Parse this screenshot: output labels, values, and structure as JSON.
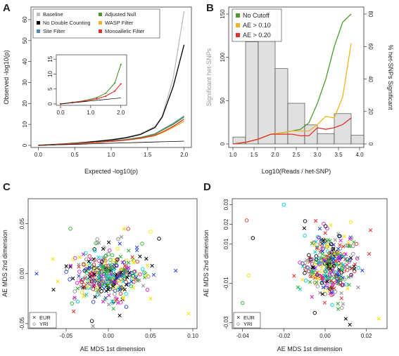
{
  "panels": {
    "A": {
      "letter": "A",
      "xlabel": "Expected -log10(p)",
      "ylabel": "Observed -log10(p)",
      "xticks": [
        "0.0",
        "0.5",
        "1.0",
        "1.5",
        "2.0"
      ],
      "yticks": [
        "0",
        "10",
        "20",
        "30",
        "40",
        "50",
        "60"
      ],
      "inset_xticks": [
        "0.0",
        "1.0",
        "2.0"
      ],
      "inset_yticks": [
        "0",
        "5",
        "10",
        "15"
      ],
      "legend": [
        {
          "label": "Baseline",
          "color": "#bdbdbd"
        },
        {
          "label": "Adjusted Null",
          "color": "#4d9a2a"
        },
        {
          "label": "No Double Counting",
          "color": "#000000"
        },
        {
          "label": "WASP Filter",
          "color": "#f2b420"
        },
        {
          "label": "Site Filter",
          "color": "#4f87c0"
        },
        {
          "label": "Monoallelic Filter",
          "color": "#e2302a"
        }
      ]
    },
    "B": {
      "letter": "B",
      "xlabel": "Log10(Reads / het-SNP)",
      "ylabel_left": "Significant het-SNPs",
      "ylabel_right": "% het-SNPs Significant",
      "xticks": [
        "1.0",
        "1.5",
        "2.0",
        "2.5",
        "3.0",
        "3.5",
        "4.0"
      ],
      "yticks_left": [
        "0",
        "50",
        "100",
        "150"
      ],
      "yticks_right": [
        "0",
        "20",
        "40",
        "60",
        "80"
      ],
      "legend": [
        {
          "label": "No Cutoff",
          "color": "#4d9a2a"
        },
        {
          "label": "AE > 0.10",
          "color": "#f2b420"
        },
        {
          "label": "AE > 0.20",
          "color": "#e2302a"
        }
      ]
    },
    "C": {
      "letter": "C",
      "xlabel": "AE MDS 1st dimension",
      "ylabel": "AE MDS 2nd dimension",
      "xticks": [
        "-0.05",
        "0.00",
        "0.05",
        "0.10"
      ],
      "yticks": [
        "-0.05",
        "0.00",
        "0.05"
      ],
      "legend": [
        {
          "label": "EUR",
          "symbol": "×"
        },
        {
          "label": "YRI",
          "symbol": "○"
        }
      ]
    },
    "D": {
      "letter": "D",
      "xlabel": "AE MDS 1st dimension",
      "ylabel": "AE MDS 2nd dimension",
      "xticks": [
        "-0.04",
        "-0.02",
        "0.00",
        "0.02"
      ],
      "yticks": [
        "-0.03",
        "-0.01",
        "0.01",
        "0.02",
        "0.03"
      ],
      "legend": [
        {
          "label": "EUR",
          "symbol": "×"
        },
        {
          "label": "YRI",
          "symbol": "○"
        }
      ]
    }
  },
  "chart_data": [
    {
      "panel": "A",
      "type": "line",
      "xlabel": "Expected -log10(p)",
      "ylabel": "Observed -log10(p)",
      "xlim": [
        -0.1,
        2.1
      ],
      "ylim": [
        -1,
        66
      ],
      "x": [
        0,
        0.2,
        0.4,
        0.6,
        0.8,
        1.0,
        1.2,
        1.4,
        1.6,
        1.7,
        1.85,
        2.0
      ],
      "series": [
        {
          "name": "Baseline",
          "color": "#bdbdbd",
          "values": [
            0,
            0.4,
            0.9,
            1.4,
            2.0,
            2.8,
            3.8,
            5.5,
            9,
            14,
            32,
            64
          ]
        },
        {
          "name": "No Double Counting",
          "color": "#000000",
          "values": [
            0,
            0.4,
            0.8,
            1.3,
            1.9,
            2.6,
            3.6,
            5.2,
            8.5,
            13.5,
            28,
            48
          ]
        },
        {
          "name": "Site Filter",
          "color": "#4f87c0",
          "values": [
            0,
            0.3,
            0.7,
            1.1,
            1.5,
            2.1,
            2.8,
            3.8,
            5.5,
            7.5,
            10.5,
            14
          ]
        },
        {
          "name": "Adjusted Null",
          "color": "#4d9a2a",
          "values": [
            0,
            0.3,
            0.7,
            1.1,
            1.5,
            2.0,
            2.7,
            3.7,
            5.3,
            7.2,
            10,
            13.5
          ]
        },
        {
          "name": "WASP Filter",
          "color": "#f2b420",
          "values": [
            0,
            0.3,
            0.6,
            1.0,
            1.4,
            1.9,
            2.5,
            3.3,
            4.6,
            6.0,
            8.5,
            11.5
          ]
        },
        {
          "name": "Monoallelic Filter",
          "color": "#e2302a",
          "values": [
            0,
            0.3,
            0.6,
            1.0,
            1.4,
            1.9,
            2.5,
            3.4,
            4.8,
            6.3,
            9,
            12.5
          ]
        },
        {
          "name": "Expected",
          "color": "#000000",
          "values": [
            0,
            0.2,
            0.4,
            0.6,
            0.8,
            1.0,
            1.2,
            1.4,
            1.6,
            1.7,
            1.85,
            2.0
          ]
        }
      ],
      "inset": {
        "xlim": [
          0,
          2.1
        ],
        "ylim": [
          0,
          16
        ],
        "x": [
          0,
          0.4,
          0.8,
          1.2,
          1.5,
          1.8,
          2.0
        ],
        "series": [
          {
            "name": "Adjusted Null",
            "color": "#4d9a2a",
            "values": [
              0,
              0.5,
              1.1,
              2.1,
              3.6,
              7.0,
              13.2
            ]
          },
          {
            "name": "Monoallelic Filter",
            "color": "#e2302a",
            "values": [
              0,
              0.5,
              1.0,
              1.7,
              2.6,
              4.3,
              6.7
            ]
          },
          {
            "name": "Expected",
            "color": "#000000",
            "values": [
              0,
              0.4,
              0.8,
              1.2,
              1.5,
              1.8,
              2.0
            ]
          }
        ]
      }
    },
    {
      "panel": "B",
      "type": "bar",
      "xlabel": "Log10(Reads / het-SNP)",
      "ylabel": "Significant het-SNPs",
      "y2label": "% het-SNPs Significant",
      "xlim": [
        0.9,
        4.1
      ],
      "ylim": [
        0,
        150
      ],
      "y2lim": [
        0,
        80
      ],
      "bins": [
        [
          1.0,
          1.3
        ],
        [
          1.3,
          1.6
        ],
        [
          1.6,
          2.0
        ],
        [
          2.0,
          2.3
        ],
        [
          2.3,
          2.7
        ],
        [
          2.7,
          3.0
        ],
        [
          3.0,
          3.4
        ],
        [
          3.4,
          3.8
        ],
        [
          3.8,
          4.1
        ]
      ],
      "values": [
        8,
        118,
        128,
        87,
        47,
        22,
        12,
        35,
        10
      ],
      "series": [
        {
          "name": "No Cutoff",
          "color": "#4d9a2a",
          "x": [
            1.0,
            1.3,
            1.6,
            1.9,
            2.2,
            2.4,
            2.6,
            2.8,
            3.0,
            3.2,
            3.4,
            3.6,
            3.8
          ],
          "values": [
            0,
            1,
            3,
            6,
            7,
            8,
            9,
            13,
            25,
            40,
            60,
            75,
            80
          ]
        },
        {
          "name": "AE > 0.10",
          "color": "#f2b420",
          "x": [
            1.0,
            1.3,
            1.6,
            1.9,
            2.2,
            2.4,
            2.6,
            2.8,
            3.0,
            3.2,
            3.4,
            3.6,
            3.8
          ],
          "values": [
            0,
            1,
            3,
            6,
            7,
            8,
            8,
            8,
            12,
            17,
            16,
            29,
            62
          ]
        },
        {
          "name": "AE > 0.20",
          "color": "#e2302a",
          "x": [
            1.0,
            1.3,
            1.6,
            1.9,
            2.2,
            2.4,
            2.6,
            2.8,
            3.0,
            3.2,
            3.4,
            3.6,
            3.8
          ],
          "values": [
            0,
            1,
            3,
            6,
            6,
            6,
            5,
            5,
            10,
            9,
            10,
            12,
            16
          ]
        }
      ]
    },
    {
      "panel": "C",
      "type": "scatter",
      "xlabel": "AE MDS 1st dimension",
      "ylabel": "AE MDS 2nd dimension",
      "xlim": [
        -0.095,
        0.105
      ],
      "ylim": [
        -0.055,
        0.075
      ],
      "seed": 7,
      "center": [
        0.0,
        -0.002
      ],
      "spread": [
        0.02,
        0.01
      ],
      "count": 420,
      "outliers": [
        {
          "x": -0.085,
          "y": 0.0,
          "sym": "x",
          "color": "#1f3fd0"
        },
        {
          "x": -0.065,
          "y": -0.016,
          "sym": "x",
          "color": "#000000"
        },
        {
          "x": 0.095,
          "y": -0.04,
          "sym": "x",
          "color": "#f5e100"
        },
        {
          "x": 0.05,
          "y": -0.025,
          "sym": "x",
          "color": "#f5e100"
        },
        {
          "x": 0.05,
          "y": 0.042,
          "sym": "o",
          "color": "#f5e100"
        },
        {
          "x": 0.06,
          "y": 0.035,
          "sym": "o",
          "color": "#000000"
        },
        {
          "x": 0.04,
          "y": 0.03,
          "sym": "o",
          "color": "#2ab02a"
        },
        {
          "x": -0.045,
          "y": 0.045,
          "sym": "o",
          "color": "#2ab02a"
        }
      ]
    },
    {
      "panel": "D",
      "type": "scatter",
      "xlabel": "AE MDS 1st dimension",
      "ylabel": "AE MDS 2nd dimension",
      "xlim": [
        -0.045,
        0.03
      ],
      "ylim": [
        -0.033,
        0.033
      ],
      "seed": 11,
      "center": [
        0.003,
        0.0
      ],
      "spread": [
        0.006,
        0.007
      ],
      "count": 380,
      "outliers": [
        {
          "x": -0.038,
          "y": 0.022,
          "sym": "o",
          "color": "#e2302a"
        },
        {
          "x": -0.035,
          "y": 0.013,
          "sym": "o",
          "color": "#000000"
        },
        {
          "x": -0.04,
          "y": -0.02,
          "sym": "o",
          "color": "#2ab02a"
        },
        {
          "x": -0.037,
          "y": -0.006,
          "sym": "o",
          "color": "#f5e100"
        },
        {
          "x": -0.02,
          "y": 0.03,
          "sym": "o",
          "color": "#00d0d0"
        },
        {
          "x": 0.026,
          "y": -0.028,
          "sym": "x",
          "color": "#f5e100"
        },
        {
          "x": 0.012,
          "y": -0.031,
          "sym": "x",
          "color": "#000000"
        },
        {
          "x": 0.01,
          "y": -0.028,
          "sym": "x",
          "color": "#000000"
        },
        {
          "x": 0.022,
          "y": 0.017,
          "sym": "x",
          "color": "#e2302a"
        },
        {
          "x": -0.005,
          "y": -0.025,
          "sym": "o",
          "color": "#000000"
        }
      ]
    }
  ]
}
